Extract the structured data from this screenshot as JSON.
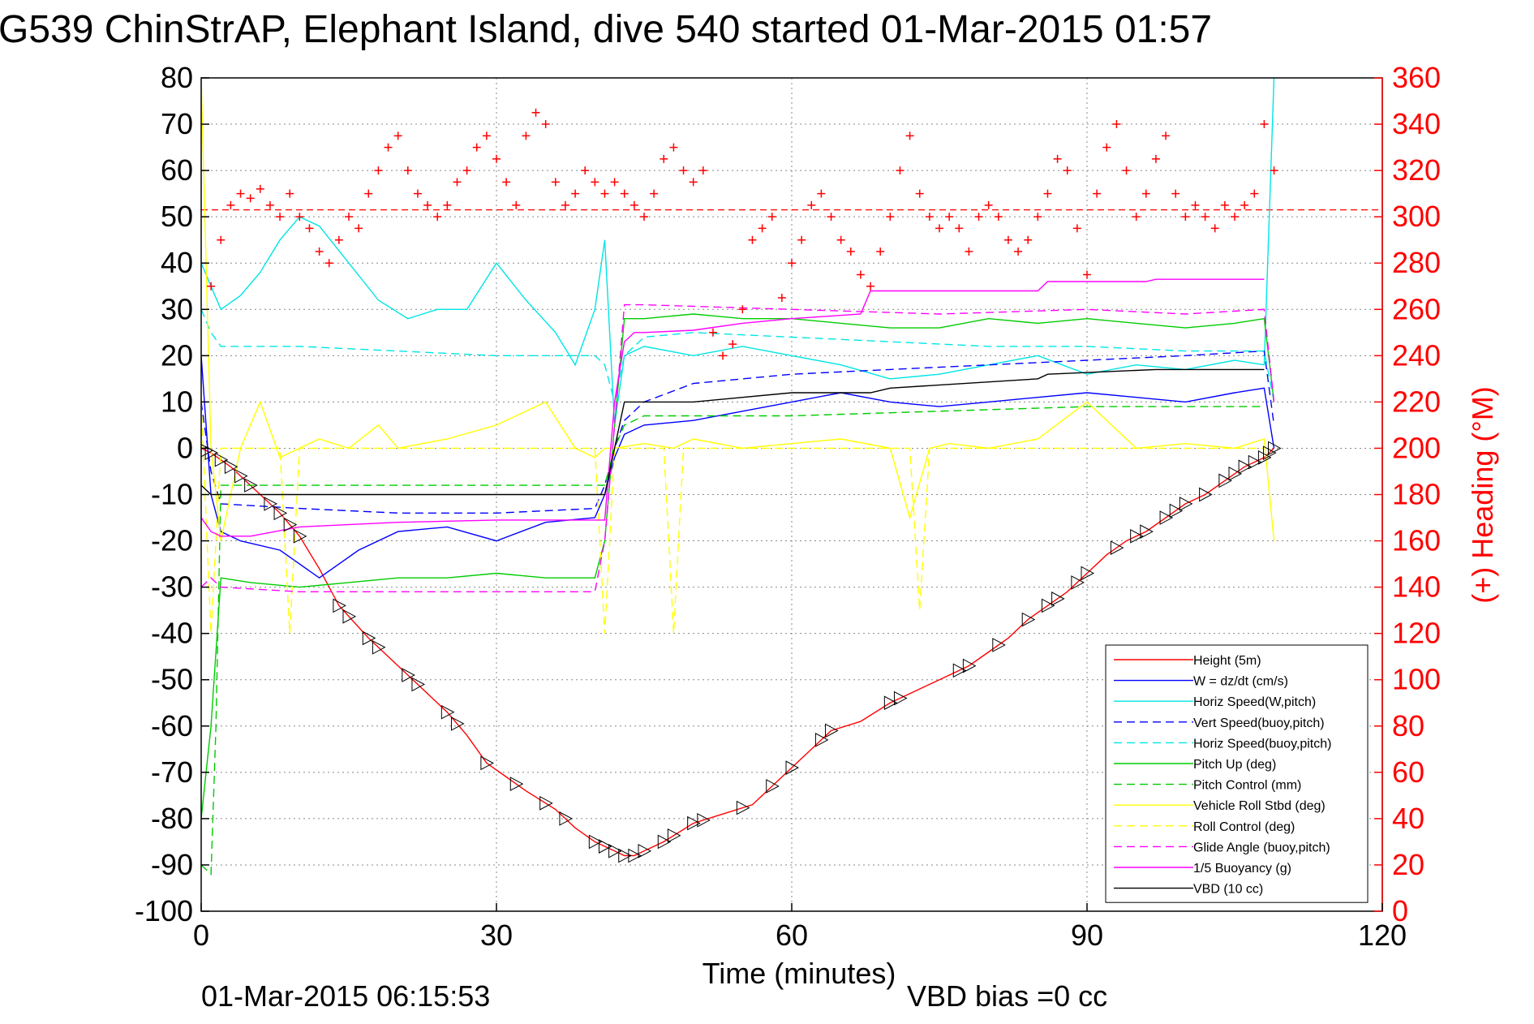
{
  "chart_data": {
    "type": "line",
    "title": "G539 ChinStrAP, Elephant Island, dive 540 started 01-Mar-2015 01:57",
    "xlabel": "Time (minutes)",
    "ylabel_right": "(+) Heading (°M)",
    "footer_left": "01-Mar-2015 06:15:53",
    "footer_right": "VBD bias =0 cc",
    "xlim": [
      0,
      120
    ],
    "ylim": [
      -100,
      80
    ],
    "ylim_right": [
      0,
      360
    ],
    "x_ticks": [
      "0",
      "30",
      "60",
      "90",
      "120"
    ],
    "y_ticks": [
      "80",
      "70",
      "60",
      "50",
      "40",
      "30",
      "20",
      "10",
      "0",
      "-10",
      "-20",
      "-30",
      "-40",
      "-50",
      "-60",
      "-70",
      "-80",
      "-90",
      "-100"
    ],
    "y_ticks_right": [
      "360",
      "340",
      "320",
      "300",
      "280",
      "260",
      "240",
      "220",
      "200",
      "180",
      "160",
      "140",
      "120",
      "100",
      "80",
      "60",
      "40",
      "20",
      "0"
    ],
    "grid": true,
    "legend_position": "bottom-right",
    "series": [
      {
        "name": "Height (5m)",
        "color": "#ff0000",
        "style": "solid",
        "x": [
          0,
          1,
          3,
          5,
          8,
          10,
          12,
          14,
          17,
          20,
          22,
          25,
          27,
          29,
          31,
          33,
          36,
          38,
          40,
          41,
          42,
          43,
          44,
          45,
          47,
          50,
          53,
          56,
          58,
          60,
          62,
          64,
          67,
          70,
          73,
          75,
          78,
          80,
          82,
          84,
          86,
          88,
          90,
          92,
          94,
          96,
          98,
          100,
          102,
          104,
          106,
          108,
          109
        ],
        "y": [
          0,
          -1,
          -4,
          -8,
          -14,
          -19,
          -26,
          -34,
          -41,
          -47,
          -51,
          -57,
          -62,
          -68,
          -71,
          -74,
          -78,
          -82,
          -85,
          -86,
          -87,
          -88,
          -88,
          -87,
          -85,
          -81,
          -79,
          -77,
          -73,
          -69,
          -65,
          -61,
          -59,
          -55,
          -52,
          -50,
          -47,
          -44,
          -41,
          -37,
          -34,
          -31,
          -27,
          -23,
          -20,
          -18,
          -15,
          -12,
          -10,
          -7,
          -4,
          -2,
          0
        ]
      },
      {
        "name": "W = dz/dt (cm/s)",
        "color": "#0000ff",
        "style": "solid",
        "x": [
          0,
          1,
          2,
          4,
          8,
          12,
          16,
          20,
          25,
          30,
          35,
          40,
          41,
          42,
          43,
          45,
          50,
          55,
          60,
          65,
          70,
          75,
          80,
          85,
          90,
          95,
          100,
          105,
          108,
          109
        ],
        "y": [
          20,
          -10,
          -18,
          -20,
          -22,
          -28,
          -22,
          -18,
          -17,
          -20,
          -16,
          -15,
          -10,
          -2,
          3,
          5,
          6,
          8,
          10,
          12,
          10,
          9,
          10,
          11,
          12,
          11,
          10,
          12,
          13,
          0
        ]
      },
      {
        "name": "Horiz Speed(W,pitch)",
        "color": "#00e5e5",
        "style": "solid",
        "x": [
          0,
          1,
          2,
          4,
          6,
          8,
          10,
          12,
          15,
          18,
          21,
          24,
          27,
          30,
          33,
          36,
          38,
          40,
          41,
          42,
          43,
          45,
          50,
          55,
          60,
          65,
          70,
          75,
          80,
          85,
          90,
          95,
          100,
          105,
          108,
          109
        ],
        "y": [
          40,
          35,
          30,
          33,
          38,
          45,
          50,
          48,
          40,
          32,
          28,
          30,
          30,
          40,
          32,
          25,
          18,
          30,
          45,
          5,
          20,
          22,
          20,
          22,
          20,
          18,
          15,
          16,
          18,
          20,
          16,
          18,
          17,
          19,
          18,
          80
        ]
      },
      {
        "name": "Vert Speed(buoy,pitch)",
        "color": "#0000ff",
        "style": "dashed",
        "x": [
          0,
          1,
          2,
          10,
          20,
          30,
          40,
          41,
          42,
          43,
          45,
          50,
          60,
          70,
          80,
          90,
          100,
          108,
          109
        ],
        "y": [
          10,
          -5,
          -12,
          -13,
          -14,
          -14,
          -13,
          -8,
          0,
          6,
          10,
          14,
          16,
          17,
          18,
          19,
          20,
          21,
          5
        ]
      },
      {
        "name": "Horiz Speed(buoy,pitch)",
        "color": "#00e5e5",
        "style": "dashed",
        "x": [
          0,
          1,
          2,
          10,
          20,
          30,
          40,
          41,
          42,
          43,
          45,
          50,
          60,
          70,
          80,
          90,
          100,
          108,
          109
        ],
        "y": [
          30,
          25,
          22,
          22,
          21,
          20,
          20,
          18,
          10,
          20,
          24,
          25,
          24,
          23,
          22,
          22,
          21,
          21,
          10
        ]
      },
      {
        "name": "Pitch Up (deg)",
        "color": "#00cc00",
        "style": "solid",
        "x": [
          0,
          1,
          2,
          5,
          10,
          15,
          20,
          25,
          30,
          35,
          40,
          41,
          42,
          43,
          45,
          50,
          55,
          60,
          65,
          70,
          75,
          80,
          85,
          90,
          95,
          100,
          105,
          108,
          109
        ],
        "y": [
          -80,
          -60,
          -28,
          -29,
          -30,
          -29,
          -28,
          -28,
          -27,
          -28,
          -28,
          -20,
          5,
          28,
          28,
          29,
          28,
          28,
          27,
          26,
          26,
          28,
          27,
          28,
          27,
          26,
          27,
          28,
          10
        ]
      },
      {
        "name": "Pitch Control (mm)",
        "color": "#00cc00",
        "style": "dashed",
        "x": [
          0,
          1,
          1.5,
          2,
          20,
          40,
          41,
          42,
          43,
          45,
          60,
          75,
          90,
          100,
          108
        ],
        "y": [
          -90,
          -92,
          -60,
          -8,
          -8,
          -8,
          -8,
          0,
          5,
          7,
          7,
          8,
          9,
          9,
          9
        ]
      },
      {
        "name": "Vehicle Roll Stbd (deg)",
        "color": "#ffff00",
        "style": "solid",
        "x": [
          0,
          1,
          2,
          4,
          6,
          8,
          10,
          12,
          15,
          18,
          20,
          25,
          30,
          35,
          38,
          40,
          41,
          42,
          45,
          48,
          50,
          55,
          60,
          65,
          70,
          72,
          74,
          76,
          80,
          85,
          90,
          95,
          100,
          105,
          108,
          109
        ],
        "y": [
          80,
          0,
          -20,
          0,
          10,
          -2,
          0,
          2,
          0,
          5,
          0,
          2,
          5,
          10,
          0,
          -2,
          0,
          0,
          1,
          0,
          2,
          0,
          1,
          2,
          0,
          -15,
          0,
          1,
          0,
          2,
          10,
          0,
          1,
          0,
          2,
          -20
        ]
      },
      {
        "name": "Roll Control (deg)",
        "color": "#ffff00",
        "style": "dashed",
        "x": [
          0,
          1,
          2,
          8,
          9,
          10,
          20,
          40,
          41,
          42,
          47,
          48,
          49,
          60,
          72,
          73,
          74,
          90,
          100,
          108
        ],
        "y": [
          10,
          -40,
          0,
          0,
          -40,
          0,
          0,
          0,
          -40,
          0,
          0,
          -40,
          0,
          0,
          0,
          -35,
          0,
          0,
          0,
          0
        ]
      },
      {
        "name": "Glide Angle (buoy,pitch)",
        "color": "#ff00ff",
        "style": "dashed",
        "x": [
          0,
          1,
          2,
          10,
          20,
          30,
          40,
          41,
          42,
          43,
          45,
          60,
          75,
          90,
          100,
          108,
          109
        ],
        "y": [
          -30,
          -28,
          -30,
          -31,
          -31,
          -31,
          -31,
          -20,
          5,
          31,
          31,
          30,
          29,
          30,
          29,
          30,
          10
        ]
      },
      {
        "name": "1/5 Buoyancy (g)",
        "color": "#ff00ff",
        "style": "solid",
        "x": [
          0,
          1,
          2,
          5,
          10,
          20,
          30,
          40,
          41,
          42,
          43,
          44,
          45,
          50,
          55,
          60,
          67,
          68,
          75,
          85,
          86,
          96,
          97,
          108
        ],
        "y": [
          -15,
          -18,
          -19,
          -19,
          -17,
          -16,
          -15.5,
          -15.5,
          -15.5,
          10,
          23,
          25,
          25,
          25.5,
          27,
          28,
          29,
          34,
          34,
          34,
          36,
          36,
          36.5,
          36.5
        ]
      },
      {
        "name": "VBD (10 cc)",
        "color": "#000000",
        "style": "solid",
        "x": [
          0,
          1,
          2,
          5,
          20,
          40,
          41,
          42,
          43,
          45,
          50,
          60,
          68,
          70,
          85,
          86,
          97,
          98,
          108
        ],
        "y": [
          -8,
          -10,
          -10,
          -10,
          -10,
          -10,
          -10,
          0,
          10,
          10,
          10,
          12,
          12,
          13,
          15,
          16,
          17,
          17,
          17
        ]
      }
    ],
    "heading_series": {
      "name": "(+) Heading (°M)",
      "color": "#ff0000",
      "axis": "right",
      "marker": "+",
      "x": [
        1,
        2,
        3,
        4,
        5,
        6,
        7,
        8,
        9,
        10,
        11,
        12,
        13,
        14,
        15,
        16,
        17,
        18,
        19,
        20,
        21,
        22,
        23,
        24,
        25,
        26,
        27,
        28,
        29,
        30,
        31,
        32,
        33,
        34,
        35,
        36,
        37,
        38,
        39,
        40,
        41,
        42,
        43,
        44,
        45,
        46,
        47,
        48,
        49,
        50,
        51,
        52,
        53,
        54,
        55,
        56,
        57,
        58,
        59,
        60,
        61,
        62,
        63,
        64,
        65,
        66,
        67,
        68,
        69,
        70,
        71,
        72,
        73,
        74,
        75,
        76,
        77,
        78,
        79,
        80,
        81,
        82,
        83,
        84,
        85,
        86,
        87,
        88,
        89,
        90,
        91,
        92,
        93,
        94,
        95,
        96,
        97,
        98,
        99,
        100,
        101,
        102,
        103,
        104,
        105,
        106,
        107,
        108,
        109
      ],
      "y": [
        270,
        290,
        305,
        310,
        308,
        312,
        305,
        300,
        310,
        300,
        295,
        285,
        280,
        290,
        300,
        295,
        310,
        320,
        330,
        335,
        320,
        310,
        305,
        300,
        305,
        315,
        320,
        330,
        335,
        325,
        315,
        305,
        335,
        345,
        340,
        315,
        305,
        310,
        320,
        315,
        310,
        315,
        310,
        305,
        300,
        310,
        325,
        330,
        320,
        315,
        320,
        250,
        240,
        245,
        260,
        290,
        295,
        300,
        265,
        280,
        290,
        305,
        310,
        300,
        290,
        285,
        275,
        270,
        285,
        300,
        320,
        335,
        310,
        300,
        295,
        300,
        295,
        285,
        300,
        305,
        300,
        290,
        285,
        290,
        300,
        310,
        325,
        320,
        295,
        275,
        310,
        330,
        340,
        320,
        300,
        310,
        325,
        335,
        310,
        300,
        305,
        300,
        295,
        305,
        300,
        305,
        310,
        340,
        320
      ]
    },
    "heading_ref_heading": 303,
    "height_markers": {
      "marker": "triangle",
      "x": [
        0.5,
        1,
        2,
        3,
        4,
        5,
        7,
        8,
        9,
        10,
        14,
        15,
        17,
        18,
        21,
        22,
        25,
        26,
        29,
        32,
        35,
        37,
        40,
        41,
        42,
        43,
        44,
        45,
        47,
        48,
        50,
        51,
        55,
        58,
        60,
        63,
        64,
        70,
        71,
        77,
        78,
        81,
        84,
        86,
        87,
        89,
        90,
        93,
        95,
        96,
        98,
        99,
        100,
        102,
        104,
        105,
        106,
        107,
        108,
        108.5,
        109
      ]
    }
  }
}
